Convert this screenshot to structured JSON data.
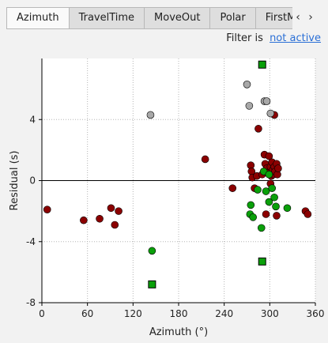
{
  "tabs": [
    {
      "label": "Azimuth",
      "active": true
    },
    {
      "label": "TravelTime",
      "active": false
    },
    {
      "label": "MoveOut",
      "active": false
    },
    {
      "label": "Polar",
      "active": false
    },
    {
      "label": "FirstM",
      "active": false
    }
  ],
  "tab_scroll": {
    "left_glyph": "‹",
    "right_glyph": "›"
  },
  "filter": {
    "label": "Filter is",
    "link_text": "not active"
  },
  "colors": {
    "red": "#8b0000",
    "green": "#0aa00a",
    "gray": "#a8a8a8",
    "plot_bg": "#ffffff"
  },
  "chart_data": {
    "type": "scatter",
    "xlabel": "Azimuth (°)",
    "ylabel": "Residual (s)",
    "xlim": [
      0,
      360
    ],
    "ylim": [
      -8,
      8
    ],
    "xticks": [
      0,
      60,
      120,
      180,
      240,
      300,
      360
    ],
    "yticks": [
      -8,
      -4,
      0,
      4
    ],
    "grid": true,
    "zero_line": true,
    "series": [
      {
        "color": "red",
        "marker": "circle",
        "points": [
          [
            7,
            -1.9
          ],
          [
            55,
            -2.6
          ],
          [
            76,
            -2.5
          ],
          [
            91,
            -1.8
          ],
          [
            96,
            -2.9
          ],
          [
            101,
            -2.0
          ],
          [
            215,
            1.4
          ],
          [
            251,
            -0.5
          ],
          [
            285,
            3.4
          ],
          [
            275,
            1.0
          ],
          [
            276,
            0.6
          ],
          [
            277,
            0.2
          ],
          [
            280,
            -0.5
          ],
          [
            283,
            0.3
          ],
          [
            290,
            0.4
          ],
          [
            293,
            1.7
          ],
          [
            294,
            1.1
          ],
          [
            296,
            0.8
          ],
          [
            297,
            0.5
          ],
          [
            299,
            1.6
          ],
          [
            301,
            0.9
          ],
          [
            302,
            0.3
          ],
          [
            303,
            1.2
          ],
          [
            304,
            0.7
          ],
          [
            305,
            0.4
          ],
          [
            306,
            0.9
          ],
          [
            307,
            0.6
          ],
          [
            309,
            1.1
          ],
          [
            310,
            0.4
          ],
          [
            311,
            0.8
          ],
          [
            301,
            -0.2
          ],
          [
            306,
            4.3
          ],
          [
            295,
            -2.2
          ],
          [
            309,
            -2.3
          ],
          [
            347,
            -2.0
          ],
          [
            350,
            -2.2
          ]
        ]
      },
      {
        "color": "green",
        "marker": "circle",
        "points": [
          [
            145,
            -4.6
          ],
          [
            274,
            -2.2
          ],
          [
            275,
            -1.6
          ],
          [
            278,
            -2.4
          ],
          [
            284,
            -0.6
          ],
          [
            289,
            -3.1
          ],
          [
            292,
            0.6
          ],
          [
            295,
            -0.7
          ],
          [
            299,
            0.4
          ],
          [
            299,
            -1.4
          ],
          [
            303,
            -0.5
          ],
          [
            306,
            -1.1
          ],
          [
            308,
            -1.7
          ],
          [
            323,
            -1.8
          ]
        ]
      },
      {
        "color": "green",
        "marker": "square",
        "points": [
          [
            145,
            -6.8
          ],
          [
            290,
            7.6
          ],
          [
            290,
            -5.3
          ]
        ]
      },
      {
        "color": "gray",
        "marker": "circle",
        "points": [
          [
            143,
            4.3
          ],
          [
            270,
            6.3
          ],
          [
            273,
            4.9
          ],
          [
            293,
            5.2
          ],
          [
            296,
            5.2
          ],
          [
            301,
            4.4
          ]
        ]
      }
    ]
  }
}
